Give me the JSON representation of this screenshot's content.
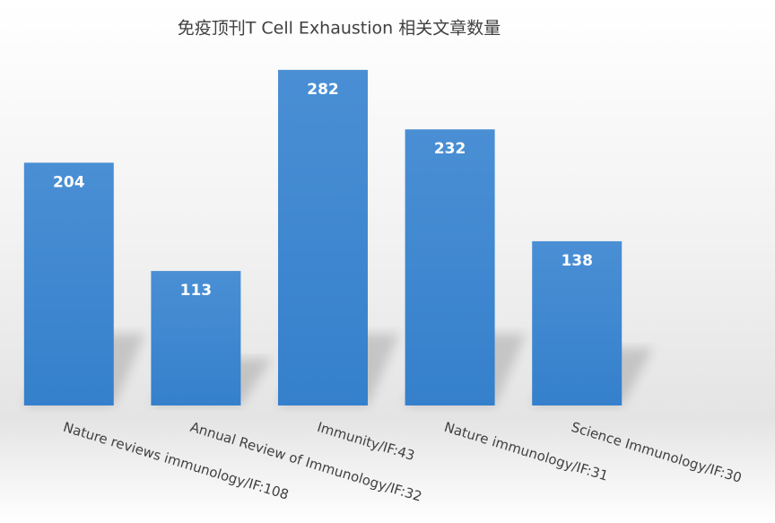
{
  "chart_data": {
    "type": "bar",
    "title": "免疫顶刊T Cell Exhaustion 相关文章数量",
    "categories": [
      "Nature reviews immunology/IF:108",
      "Annual Review of Immunology/IF:32",
      "Immunity/IF:43",
      "Nature immunology/IF:31",
      "Science Immunology/IF:30"
    ],
    "values": [
      204,
      113,
      282,
      232,
      138
    ],
    "color": "#4a8fd4",
    "ylim": [
      0,
      300
    ]
  }
}
